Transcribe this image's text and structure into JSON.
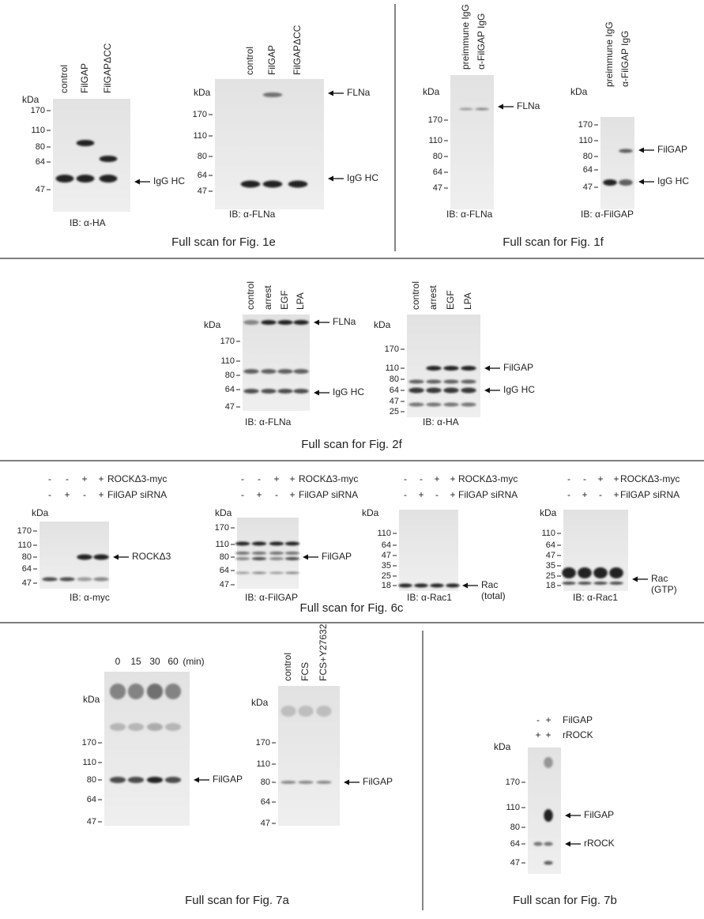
{
  "captions": [
    "Full scan for Fig. 1e",
    "Full scan for Fig. 1f",
    "Full scan for Fig. 2f",
    "Full scan for Fig. 6c",
    "Full scan for Fig. 7a",
    "Full scan for Fig. 7b"
  ],
  "blots": [
    {
      "lanes": [
        "control",
        "FilGAP",
        "FilGAPΔCC"
      ],
      "kda": "kDa",
      "markers": [
        "170",
        "110",
        "80",
        "64",
        "47"
      ],
      "arrows": [
        [
          "IgG HC"
        ]
      ],
      "ib": "IB: α-HA"
    },
    {
      "lanes": [
        "control",
        "FilGAP",
        "FilGAPΔCC"
      ],
      "kda": "kDa",
      "markers": [
        "170",
        "110",
        "80",
        "64",
        "47"
      ],
      "arrows": [
        [
          "FLNa"
        ],
        [
          "IgG HC"
        ]
      ],
      "ib": "IB: α-FLNa"
    },
    {
      "lanes": [
        "preimmune IgG",
        "α-FilGAP IgG"
      ],
      "kda": "kDa",
      "markers": [
        "170",
        "110",
        "80",
        "64",
        "47"
      ],
      "arrows": [
        [
          "FLNa"
        ]
      ],
      "ib": "IB: α-FLNa"
    },
    {
      "lanes": [
        "preimmune IgG",
        "α-FilGAP IgG"
      ],
      "kda": "kDa",
      "markers": [
        "170",
        "110",
        "80",
        "64",
        "47"
      ],
      "arrows": [
        [
          "FilGAP"
        ],
        [
          "IgG HC"
        ]
      ],
      "ib": "IB: α-FilGAP"
    },
    {
      "lanes": [
        "control",
        "arrest",
        "EGF",
        "LPA"
      ],
      "kda": "kDa",
      "markers": [
        "170",
        "110",
        "80",
        "64",
        "47"
      ],
      "arrows": [
        [
          "FLNa"
        ],
        [
          "IgG HC"
        ]
      ],
      "ib": "IB: α-FLNa"
    },
    {
      "lanes": [
        "control",
        "arrest",
        "EGF",
        "LPA"
      ],
      "kda": "kDa",
      "markers": [
        "170",
        "110",
        "80",
        "64",
        "47",
        "25"
      ],
      "arrows": [
        [
          "FilGAP"
        ],
        [
          "IgG HC"
        ]
      ],
      "ib": "IB: α-HA"
    },
    {
      "conditions": [
        {
          "signs": [
            "-",
            "-",
            "+",
            "+"
          ],
          "label": "ROCKΔ3-myc"
        },
        {
          "signs": [
            "-",
            "+",
            "-",
            "+"
          ],
          "label": "FilGAP siRNA"
        }
      ],
      "kda": "kDa",
      "markers": [
        "170",
        "110",
        "80",
        "64",
        "47"
      ],
      "arrows": [
        [
          "ROCKΔ3"
        ]
      ],
      "ib": "IB: α-myc"
    },
    {
      "conditions": [
        {
          "signs": [
            "-",
            "-",
            "+",
            "+"
          ],
          "label": "ROCKΔ3-myc"
        },
        {
          "signs": [
            "-",
            "+",
            "-",
            "+"
          ],
          "label": "FilGAP siRNA"
        }
      ],
      "kda": "kDa",
      "markers": [
        "170",
        "110",
        "80",
        "64",
        "47"
      ],
      "arrows": [
        [
          "FilGAP"
        ]
      ],
      "ib": "IB: α-FilGAP"
    },
    {
      "conditions": [
        {
          "signs": [
            "-",
            "-",
            "+",
            "+"
          ],
          "label": "ROCKΔ3-myc"
        },
        {
          "signs": [
            "-",
            "+",
            "-",
            "+"
          ],
          "label": "FilGAP siRNA"
        }
      ],
      "kda": "kDa",
      "markers": [
        "110",
        "64",
        "47",
        "35",
        "25",
        "18"
      ],
      "arrows": [
        [
          "Rac",
          "(total)"
        ]
      ],
      "ib": "IB: α-Rac1"
    },
    {
      "conditions": [
        {
          "signs": [
            "-",
            "-",
            "+",
            "+"
          ],
          "label": "ROCKΔ3-myc"
        },
        {
          "signs": [
            "-",
            "+",
            "-",
            "+"
          ],
          "label": "FilGAP siRNA"
        }
      ],
      "kda": "kDa",
      "markers": [
        "110",
        "64",
        "47",
        "35",
        "25",
        "18"
      ],
      "arrows": [
        [
          "Rac",
          "(GTP)"
        ]
      ],
      "ib": "IB: α-Rac1"
    },
    {
      "lanes": [
        "0",
        "15",
        "30",
        "60"
      ],
      "lane_unit": "(min)",
      "kda": "kDa",
      "markers": [
        "170",
        "110",
        "80",
        "64",
        "47"
      ],
      "arrows": [
        [
          "FilGAP"
        ]
      ]
    },
    {
      "lanes": [
        "control",
        "FCS",
        "FCS+Y27632"
      ],
      "kda": "kDa",
      "markers": [
        "170",
        "110",
        "80",
        "64",
        "47"
      ],
      "arrows": [
        [
          "FilGAP"
        ]
      ]
    },
    {
      "conditions": [
        {
          "signs": [
            "-",
            "+"
          ],
          "label": "FilGAP"
        },
        {
          "signs": [
            "+",
            "+"
          ],
          "label": "rROCK"
        }
      ],
      "kda": "kDa",
      "markers": [
        "170",
        "110",
        "80",
        "64",
        "47"
      ],
      "arrows": [
        [
          "FilGAP"
        ],
        [
          "rROCK"
        ]
      ]
    }
  ]
}
